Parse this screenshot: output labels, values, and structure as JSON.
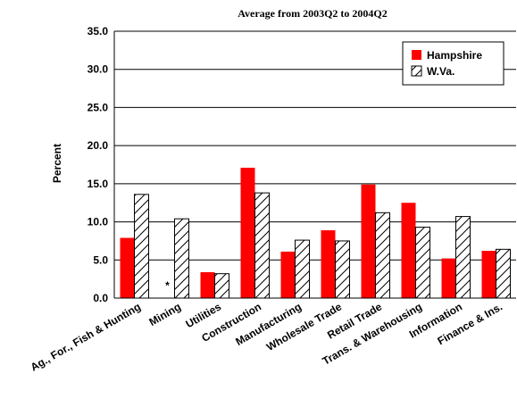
{
  "chart_data": {
    "type": "bar",
    "title": "Average from 2003Q2 to 2004Q2",
    "ylabel": "Percent",
    "ylim": [
      0,
      35
    ],
    "yticks": [
      "0.0",
      "5.0",
      "10.0",
      "15.0",
      "20.0",
      "25.0",
      "30.0",
      "35.0"
    ],
    "categories": [
      "Ag., For., Fish & Hunting",
      "Mining",
      "Utilities",
      "Construction",
      "Manufacturing",
      "Wholesale Trade",
      "Retail Trade",
      "Trans. & Warehousing",
      "Information",
      "Finance & Ins."
    ],
    "series": [
      {
        "name": "Hampshire",
        "values": [
          7.9,
          null,
          3.4,
          17.1,
          6.1,
          8.9,
          14.9,
          12.5,
          5.2,
          6.2
        ]
      },
      {
        "name": "W.Va.",
        "values": [
          13.6,
          10.4,
          3.2,
          13.8,
          7.6,
          7.5,
          11.2,
          9.3,
          10.7,
          6.4
        ]
      }
    ],
    "annotations": [
      {
        "category": "Mining",
        "series": "Hampshire",
        "text": "*"
      }
    ],
    "grid": true,
    "legend_position": "top-right",
    "colors": {
      "Hampshire": "#ff0000",
      "W.Va.": "#ffffff"
    }
  }
}
